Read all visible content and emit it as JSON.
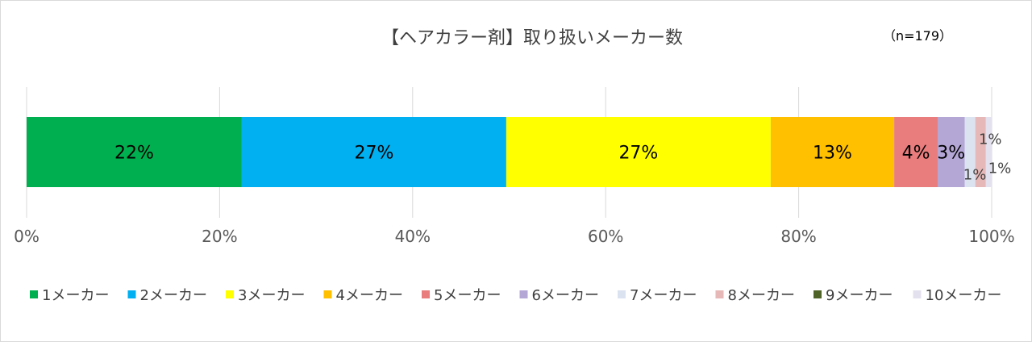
{
  "chart_data": {
    "type": "bar",
    "orientation": "horizontal-stacked-100",
    "title": "【ヘアカラー剤】取り扱いメーカー数",
    "note": "（n=179）",
    "xlim": [
      0,
      100
    ],
    "x_ticks": [
      "0%",
      "20%",
      "40%",
      "60%",
      "80%",
      "100%"
    ],
    "legend_position": "bottom",
    "gridlines": true,
    "series": [
      {
        "name": "1メーカー",
        "value": 22.3,
        "label": "22%",
        "color": "#00B050"
      },
      {
        "name": "2メーカー",
        "value": 27.4,
        "label": "27%",
        "color": "#00B0F0"
      },
      {
        "name": "3メーカー",
        "value": 27.4,
        "label": "27%",
        "color": "#FFFF00"
      },
      {
        "name": "4メーカー",
        "value": 12.8,
        "label": "13%",
        "color": "#FFC000"
      },
      {
        "name": "5メーカー",
        "value": 4.5,
        "label": "4%",
        "color": "#E97C7C"
      },
      {
        "name": "6メーカー",
        "value": 2.8,
        "label": "3%",
        "color": "#B4A7D6"
      },
      {
        "name": "7メーカー",
        "value": 1.1,
        "label": "1%",
        "color": "#DCE3F0"
      },
      {
        "name": "8メーカー",
        "value": 1.1,
        "label": "1%",
        "color": "#E6B8B7"
      },
      {
        "name": "9メーカー",
        "value": 0,
        "label": "",
        "color": "#4F6228"
      },
      {
        "name": "10メーカー",
        "value": 0.6,
        "label": "1%",
        "color": "#E4E1EE"
      }
    ]
  }
}
